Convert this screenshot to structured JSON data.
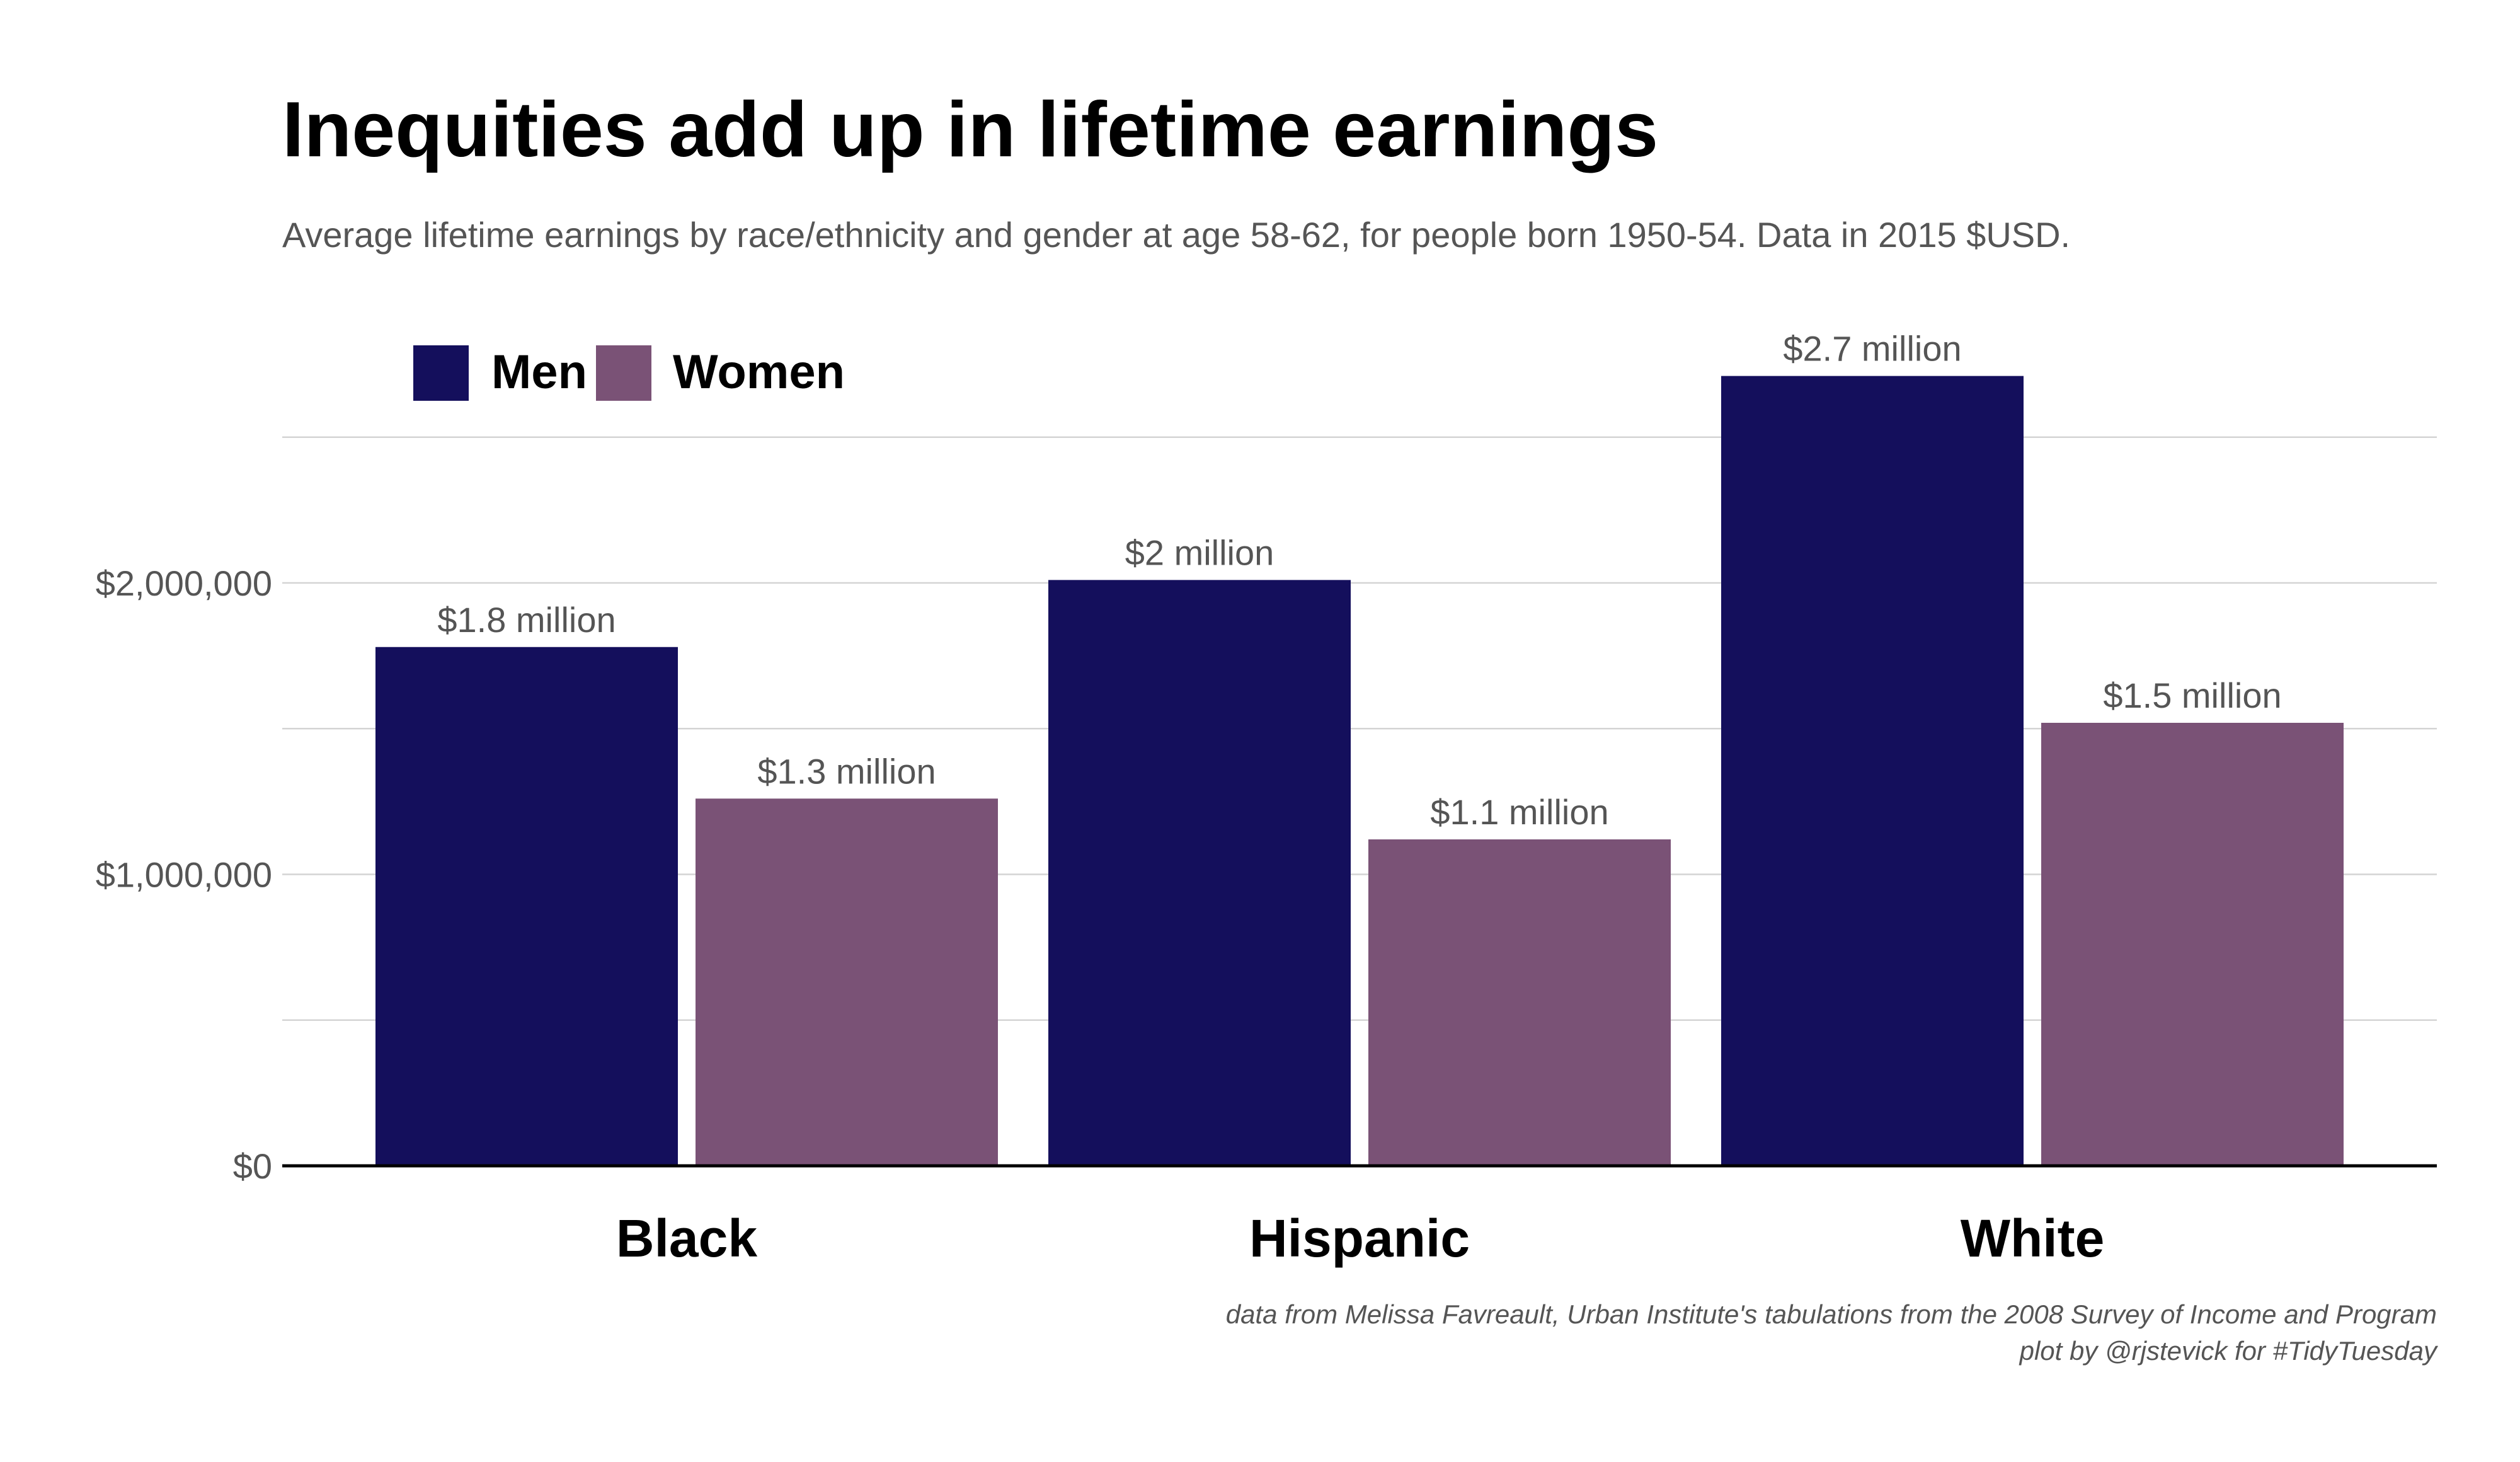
{
  "chart_data": {
    "type": "bar",
    "title": "Inequities add up in lifetime earnings",
    "subtitle": "Average lifetime earnings by race/ethnicity and gender at age 58-62, for people born 1950-54. Data in 2015 $USD.",
    "categories": [
      "Black",
      "Hispanic",
      "White"
    ],
    "series": [
      {
        "name": "Men",
        "color": "#140f5c",
        "values": [
          1780000,
          2010000,
          2710000
        ],
        "labels": [
          "$1.8 million",
          "$2 million",
          "$2.7 million"
        ]
      },
      {
        "name": "Women",
        "color": "#7a5276",
        "values": [
          1260000,
          1120000,
          1520000
        ],
        "labels": [
          "$1.3 million",
          "$1.1 million",
          "$1.5 million"
        ]
      }
    ],
    "ylim": [
      0,
      2500000
    ],
    "yticks": [
      0,
      1000000,
      2000000
    ],
    "ytick_labels": [
      "$0",
      "$1,000,000",
      "$2,000,000"
    ],
    "minor_gridlines": [
      500000,
      1500000,
      2500000
    ],
    "grid": true,
    "legend_position": "top-left",
    "caption": [
      "data from Melissa Favreault, Urban Institute's tabulations from the 2008 Survey of Income and Program",
      "plot by @rjstevick for #TidyTuesday"
    ]
  }
}
